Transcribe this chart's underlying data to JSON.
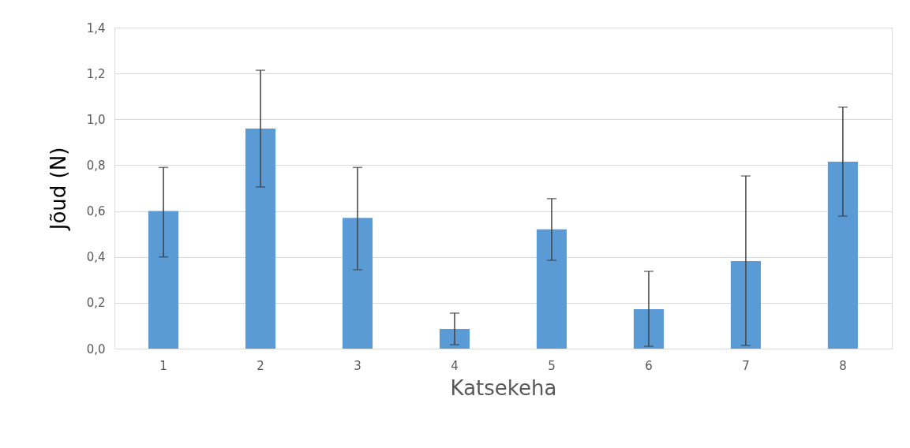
{
  "chart_data": {
    "type": "bar",
    "xlabel": "Katsekeha",
    "ylabel": "Jõud (N)",
    "categories": [
      "1",
      "2",
      "3",
      "4",
      "5",
      "6",
      "7",
      "8"
    ],
    "values": [
      0.6,
      0.96,
      0.57,
      0.086,
      0.52,
      0.172,
      0.382,
      0.815
    ],
    "errors": [
      [
        0.4,
        0.79
      ],
      [
        0.705,
        1.214
      ],
      [
        0.344,
        0.79
      ],
      [
        0.017,
        0.155
      ],
      [
        0.385,
        0.654
      ],
      [
        0.01,
        0.337
      ],
      [
        0.014,
        0.753
      ],
      [
        0.578,
        1.053
      ]
    ],
    "color": "#5b9bd5",
    "ylim": [
      0,
      1.4
    ],
    "yticks": [
      {
        "value": 0,
        "label": "0,0"
      },
      {
        "value": 0.2,
        "label": "0,2"
      },
      {
        "value": 0.4,
        "label": "0,4"
      },
      {
        "value": 0.6,
        "label": "0,6"
      },
      {
        "value": 0.8,
        "label": "0,8"
      },
      {
        "value": 1.0,
        "label": "1,0"
      },
      {
        "value": 1.2,
        "label": "1,2"
      },
      {
        "value": 1.4,
        "label": "1,4"
      }
    ],
    "grid": "y"
  }
}
